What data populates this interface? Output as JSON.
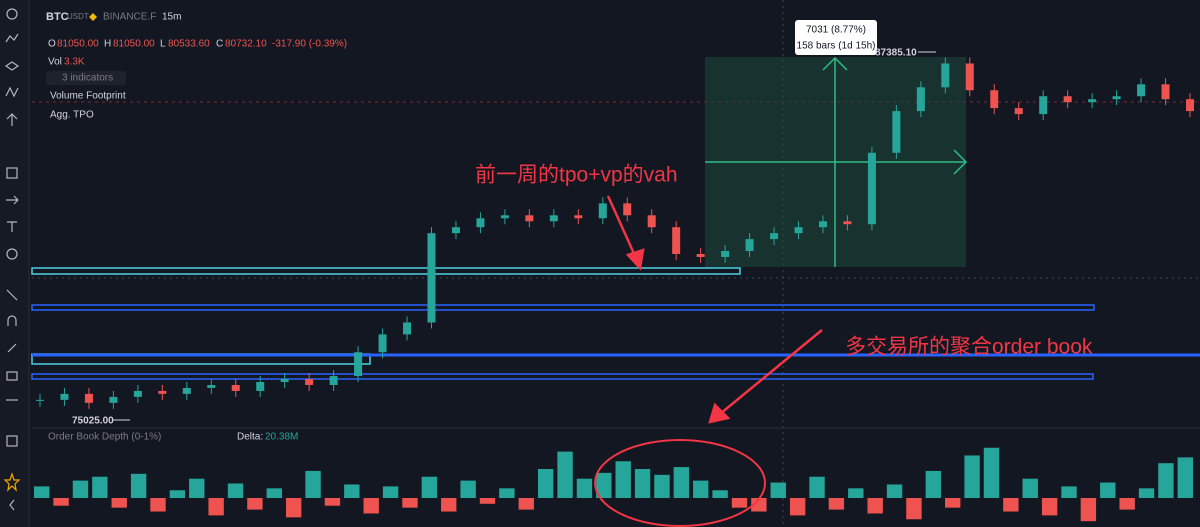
{
  "header": {
    "symbol": "BTC",
    "quote": "USDT",
    "exchange": "BINANCE.F",
    "interval": "15m"
  },
  "ohlc": {
    "o_label": "O",
    "o": "81050.00",
    "h_label": "H",
    "h": "81050.00",
    "l_label": "L",
    "l": "80533.60",
    "c_label": "C",
    "c": "80732.10",
    "change": "-317.90 (-0.39%)"
  },
  "volume": {
    "label": "Vol",
    "value": "3.3K"
  },
  "indicators": {
    "count_label": "3 indicators",
    "items": [
      "Volume Footprint",
      "Agg. TPO"
    ]
  },
  "measure": {
    "change": "7031 (8.77%)",
    "bars": "158 bars (1d 15h)"
  },
  "price_labels": {
    "high": "87385.10",
    "low": "75025.00"
  },
  "annotations": [
    "前一周的tpo+vp的vah",
    "多交易所的聚合order book"
  ],
  "depth_pane": {
    "title": "Order Book Depth (0-1%)",
    "delta_label": "Delta:",
    "delta": "20.38M"
  },
  "chart_data": {
    "type": "candlestick",
    "ylim": [
      74688,
      88460
    ],
    "up_color": "#26a69a",
    "down_color": "#ef5350",
    "closes": [
      75700,
      75900,
      75600,
      75800,
      76000,
      75900,
      76100,
      76200,
      76000,
      76300,
      76400,
      76200,
      76500,
      77300,
      77900,
      78300,
      81300,
      81500,
      81800,
      81900,
      81700,
      81900,
      81800,
      82300,
      81900,
      81500,
      80600,
      80500,
      80700,
      81100,
      81300,
      81500,
      81700,
      81600,
      84000,
      85400,
      86200,
      87000,
      86100,
      85500,
      85300,
      85900,
      85700,
      85800,
      85900,
      86300,
      85800,
      85400
    ],
    "depth_ylim": [
      -30,
      60
    ],
    "depth": [
      12,
      -8,
      18,
      22,
      -10,
      25,
      -14,
      8,
      20,
      -18,
      15,
      -12,
      10,
      -20,
      28,
      -8,
      14,
      -16,
      12,
      -10,
      22,
      -14,
      18,
      -6,
      10,
      -12,
      30,
      48,
      20,
      26,
      38,
      30,
      24,
      32,
      18,
      8,
      -10,
      -14,
      16,
      -18,
      22,
      -12,
      10,
      -16,
      14,
      -22,
      28,
      -10,
      44,
      52,
      -14,
      20,
      -18,
      12,
      -24,
      16,
      -12,
      10,
      36,
      42
    ]
  }
}
